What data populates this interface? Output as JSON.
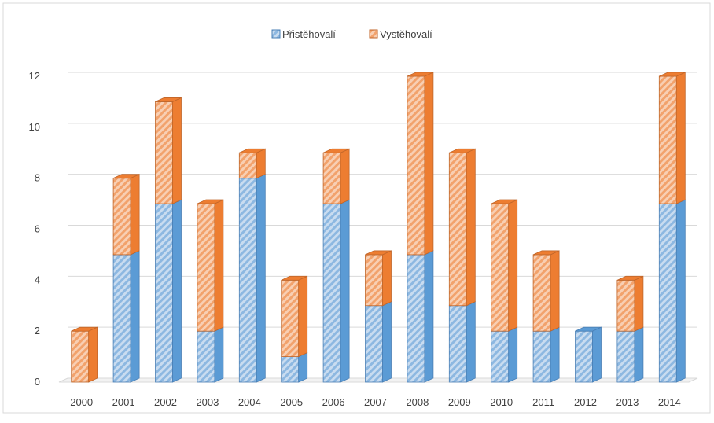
{
  "chart_data": {
    "type": "bar",
    "stacked": true,
    "three_d": true,
    "categories": [
      "2000",
      "2001",
      "2002",
      "2003",
      "2004",
      "2005",
      "2006",
      "2007",
      "2008",
      "2009",
      "2010",
      "2011",
      "2012",
      "2013",
      "2014"
    ],
    "series": [
      {
        "name": "Přistěhovalí",
        "values": [
          0,
          5,
          7,
          2,
          8,
          1,
          7,
          3,
          5,
          3,
          2,
          2,
          2,
          2,
          7
        ],
        "color": "#5b9bd5",
        "fill": "#c9dcf0",
        "edge": "#4a7fb5"
      },
      {
        "name": "Vystěhovalí",
        "values": [
          2,
          3,
          4,
          5,
          1,
          3,
          2,
          2,
          7,
          6,
          5,
          3,
          0,
          2,
          5
        ],
        "color": "#ed7d31",
        "fill": "#f8cfb3",
        "edge": "#c0662a"
      }
    ],
    "ylim": [
      0,
      12
    ],
    "yticks": [
      "0",
      "2",
      "4",
      "6",
      "8",
      "10",
      "12"
    ],
    "grid": true,
    "legend_position": "top",
    "pattern": "diagonal-stripes"
  }
}
